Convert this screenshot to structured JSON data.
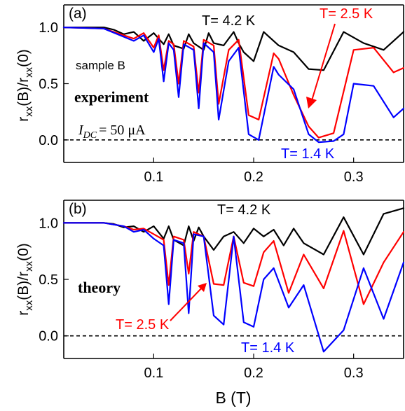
{
  "xlabel": "B (T)",
  "colors": {
    "t42": "#000000",
    "t25": "#ff0000",
    "t14": "#0000ff",
    "zero_line": "#000000"
  },
  "panels": {
    "a": {
      "tag": "(a)",
      "ylabel_main": "r",
      "ylabel_sub1": "xx",
      "ylabel_mid": "(B)/r",
      "ylabel_sub2": "xx",
      "ylabel_end": "(0)",
      "label_t42": "T= 4.2 K",
      "label_t25": "T= 2.5 K",
      "label_t14": "T= 1.4 K",
      "sample": "sample B",
      "mode": "experiment",
      "idc_main": "I",
      "idc_sub": "DC",
      "idc_value": "= 50 μA"
    },
    "b": {
      "tag": "(b)",
      "ylabel_main": "r",
      "ylabel_sub1": "xx",
      "ylabel_mid": "(B)/r",
      "ylabel_sub2": "xx",
      "ylabel_end": "(0)",
      "label_t42": "T= 4.2 K",
      "label_t25": "T= 2.5 K",
      "label_t14": "T= 1.4 K",
      "mode": "theory"
    }
  },
  "chart_data": [
    {
      "type": "line",
      "panel": "a",
      "xlim": [
        0.01,
        0.35
      ],
      "ylim": [
        -0.2,
        1.2
      ],
      "xticks": [
        0.1,
        0.2,
        0.3
      ],
      "xtick_labels": [
        "0.1",
        "0.2",
        "0.3"
      ],
      "yticks": [
        0.0,
        0.5,
        1.0
      ],
      "ytick_labels": [
        "0.0",
        "0.5",
        "1.0"
      ],
      "reference_line_y": 0.0,
      "series": [
        {
          "name": "T= 4.2 K",
          "color": "#000000",
          "x": [
            0.01,
            0.05,
            0.06,
            0.07,
            0.08,
            0.09,
            0.1,
            0.11,
            0.115,
            0.12,
            0.13,
            0.135,
            0.14,
            0.15,
            0.155,
            0.16,
            0.17,
            0.18,
            0.185,
            0.19,
            0.2,
            0.21,
            0.225,
            0.24,
            0.255,
            0.27,
            0.29,
            0.31,
            0.33,
            0.35
          ],
          "y": [
            1.0,
            1.0,
            0.98,
            0.94,
            0.96,
            0.88,
            0.95,
            0.85,
            0.94,
            0.84,
            0.81,
            0.94,
            0.86,
            0.8,
            0.95,
            0.86,
            0.84,
            0.96,
            0.86,
            0.78,
            0.7,
            0.96,
            0.84,
            0.78,
            0.63,
            0.62,
            0.96,
            0.86,
            0.8,
            0.96
          ]
        },
        {
          "name": "T= 2.5 K",
          "color": "#ff0000",
          "x": [
            0.01,
            0.05,
            0.08,
            0.09,
            0.1,
            0.105,
            0.11,
            0.115,
            0.12,
            0.125,
            0.13,
            0.14,
            0.145,
            0.15,
            0.16,
            0.165,
            0.175,
            0.185,
            0.195,
            0.205,
            0.22,
            0.225,
            0.24,
            0.255,
            0.265,
            0.28,
            0.3,
            0.32,
            0.34,
            0.35
          ],
          "y": [
            1.0,
            0.99,
            0.9,
            0.95,
            0.82,
            0.93,
            0.62,
            0.88,
            0.85,
            0.5,
            0.88,
            0.83,
            0.42,
            0.89,
            0.84,
            0.32,
            0.8,
            0.89,
            0.22,
            0.18,
            0.77,
            0.72,
            0.4,
            0.12,
            0.02,
            0.06,
            0.8,
            0.82,
            0.6,
            0.64
          ]
        },
        {
          "name": "T= 1.4 K",
          "color": "#0000ff",
          "x": [
            0.01,
            0.05,
            0.08,
            0.09,
            0.1,
            0.105,
            0.11,
            0.115,
            0.12,
            0.125,
            0.13,
            0.14,
            0.145,
            0.15,
            0.16,
            0.165,
            0.175,
            0.185,
            0.195,
            0.205,
            0.22,
            0.225,
            0.24,
            0.255,
            0.265,
            0.28,
            0.29,
            0.3,
            0.32,
            0.34,
            0.35
          ],
          "y": [
            1.0,
            0.99,
            0.88,
            0.93,
            0.78,
            0.9,
            0.52,
            0.86,
            0.8,
            0.38,
            0.85,
            0.8,
            0.28,
            0.86,
            0.78,
            0.18,
            0.7,
            0.82,
            0.05,
            0.0,
            0.65,
            0.58,
            0.45,
            0.05,
            -0.02,
            -0.01,
            0.05,
            0.5,
            0.48,
            0.2,
            0.28
          ]
        }
      ]
    },
    {
      "type": "line",
      "panel": "b",
      "xlim": [
        0.01,
        0.35
      ],
      "ylim": [
        -0.2,
        1.2
      ],
      "xticks": [
        0.1,
        0.2,
        0.3
      ],
      "xtick_labels": [
        "0.1",
        "0.2",
        "0.3"
      ],
      "yticks": [
        0.0,
        0.5,
        1.0
      ],
      "ytick_labels": [
        "0.0",
        "0.5",
        "1.0"
      ],
      "reference_line_y": 0.0,
      "series": [
        {
          "name": "T= 4.2 K",
          "color": "#000000",
          "x": [
            0.01,
            0.05,
            0.06,
            0.07,
            0.08,
            0.09,
            0.1,
            0.11,
            0.115,
            0.12,
            0.13,
            0.135,
            0.14,
            0.145,
            0.15,
            0.16,
            0.17,
            0.18,
            0.19,
            0.2,
            0.21,
            0.22,
            0.23,
            0.24,
            0.25,
            0.27,
            0.29,
            0.31,
            0.33,
            0.35
          ],
          "y": [
            1.0,
            1.0,
            0.99,
            0.96,
            0.97,
            0.92,
            0.97,
            0.86,
            0.97,
            0.85,
            0.8,
            0.97,
            0.84,
            0.96,
            0.88,
            0.76,
            0.88,
            0.92,
            0.82,
            0.95,
            0.88,
            0.94,
            0.8,
            0.95,
            0.82,
            0.72,
            1.05,
            0.72,
            1.08,
            1.13
          ]
        },
        {
          "name": "T= 2.5 K",
          "color": "#ff0000",
          "x": [
            0.01,
            0.05,
            0.07,
            0.08,
            0.09,
            0.1,
            0.11,
            0.115,
            0.12,
            0.13,
            0.135,
            0.14,
            0.15,
            0.16,
            0.17,
            0.18,
            0.19,
            0.2,
            0.21,
            0.22,
            0.235,
            0.25,
            0.27,
            0.29,
            0.31,
            0.33,
            0.35
          ],
          "y": [
            1.0,
            1.0,
            0.97,
            0.94,
            0.95,
            0.9,
            0.85,
            0.45,
            0.88,
            0.85,
            0.55,
            0.92,
            0.88,
            0.46,
            0.45,
            0.88,
            0.47,
            0.44,
            0.74,
            0.84,
            0.38,
            0.72,
            0.42,
            0.93,
            0.28,
            0.65,
            0.92
          ]
        },
        {
          "name": "T= 1.4 K",
          "color": "#0000ff",
          "x": [
            0.01,
            0.05,
            0.07,
            0.08,
            0.09,
            0.1,
            0.11,
            0.115,
            0.12,
            0.13,
            0.135,
            0.14,
            0.15,
            0.16,
            0.17,
            0.18,
            0.19,
            0.2,
            0.21,
            0.22,
            0.235,
            0.25,
            0.27,
            0.29,
            0.31,
            0.33,
            0.35
          ],
          "y": [
            1.0,
            1.0,
            0.97,
            0.92,
            0.94,
            0.86,
            0.8,
            0.28,
            0.85,
            0.82,
            0.2,
            0.9,
            0.88,
            0.18,
            0.1,
            0.88,
            0.12,
            0.08,
            0.5,
            0.6,
            0.25,
            0.45,
            -0.14,
            0.05,
            0.6,
            0.15,
            0.65
          ]
        }
      ]
    }
  ]
}
